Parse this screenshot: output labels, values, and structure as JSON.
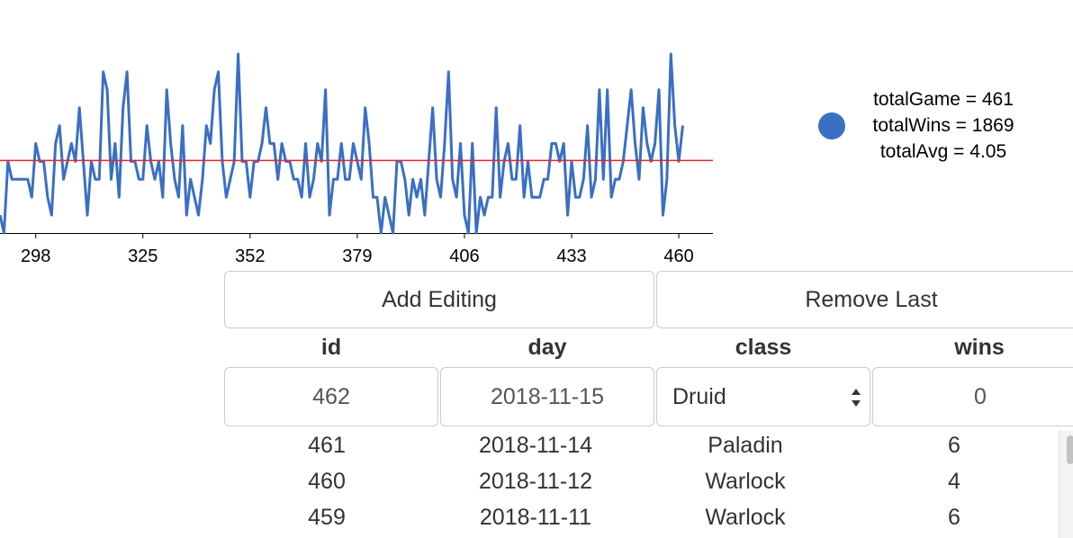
{
  "chart_data": {
    "type": "line",
    "x": [
      289,
      290,
      291,
      292,
      293,
      294,
      295,
      296,
      297,
      298,
      299,
      300,
      301,
      302,
      303,
      304,
      305,
      306,
      307,
      308,
      309,
      310,
      311,
      312,
      313,
      314,
      315,
      316,
      317,
      318,
      319,
      320,
      321,
      322,
      323,
      324,
      325,
      326,
      327,
      328,
      329,
      330,
      331,
      332,
      333,
      334,
      335,
      336,
      337,
      338,
      339,
      340,
      341,
      342,
      343,
      344,
      345,
      346,
      347,
      348,
      349,
      350,
      351,
      352,
      353,
      354,
      355,
      356,
      357,
      358,
      359,
      360,
      361,
      362,
      363,
      364,
      365,
      366,
      367,
      368,
      369,
      370,
      371,
      372,
      373,
      374,
      375,
      376,
      377,
      378,
      379,
      380,
      381,
      382,
      383,
      384,
      385,
      386,
      387,
      388,
      389,
      390,
      391,
      392,
      393,
      394,
      395,
      396,
      397,
      398,
      399,
      400,
      401,
      402,
      403,
      404,
      405,
      406,
      407,
      408,
      409,
      410,
      411,
      412,
      413,
      414,
      415,
      416,
      417,
      418,
      419,
      420,
      421,
      422,
      423,
      424,
      425,
      426,
      427,
      428,
      429,
      430,
      431,
      432,
      433,
      434,
      435,
      436,
      437,
      438,
      439,
      440,
      441,
      442,
      443,
      444,
      445,
      446,
      447,
      448,
      449,
      450,
      451,
      452,
      453,
      454,
      455,
      456,
      457,
      458,
      459,
      460,
      461
    ],
    "series": [
      {
        "color": "#3a6fc4",
        "values": [
          1,
          0,
          4,
          3,
          3,
          3,
          3,
          3,
          2,
          5,
          4,
          4,
          2,
          1,
          5,
          6,
          3,
          4,
          5,
          4,
          7,
          4,
          1,
          4,
          3,
          3,
          9,
          8,
          3,
          5,
          2,
          7,
          9,
          4,
          4,
          3,
          3,
          6,
          4,
          3,
          4,
          2,
          8,
          5,
          3,
          2,
          6,
          1,
          3,
          2,
          1,
          3,
          6,
          5,
          8,
          9,
          4,
          2,
          3,
          4,
          10,
          4,
          4,
          2,
          4,
          4,
          5,
          7,
          5,
          5,
          3,
          5,
          4,
          4,
          3,
          3,
          2,
          5,
          2,
          3,
          5,
          4,
          8,
          1,
          3,
          3,
          5,
          3,
          3,
          5,
          4,
          3,
          7,
          5,
          2,
          2,
          0,
          2,
          1,
          0,
          4,
          4,
          3,
          1,
          3,
          2,
          3,
          1,
          4,
          7,
          3,
          2,
          5,
          9,
          3,
          2,
          5,
          1,
          0,
          5,
          0,
          2,
          1,
          2,
          2,
          7,
          2,
          4,
          5,
          3,
          3,
          6,
          2,
          4,
          2,
          2,
          2,
          3,
          3,
          5,
          5,
          4,
          5,
          1,
          4,
          2,
          2,
          3,
          6,
          2,
          3,
          8,
          3,
          8,
          2,
          3,
          3,
          4,
          6,
          8,
          5,
          3,
          7,
          5,
          4,
          5,
          8,
          1,
          3,
          10,
          6,
          4,
          6
        ]
      }
    ],
    "xlim": [
      289,
      468.6
    ],
    "ylim": [
      0,
      10
    ],
    "xticks": [
      298,
      325,
      352,
      379,
      406,
      433,
      460
    ],
    "reference_line": {
      "value": 4.05,
      "color": "#e3262b"
    }
  },
  "legend": {
    "color": "#3a6fc4",
    "lines": [
      "totalGame = 461",
      "totalWins = 1869",
      "totalAvg = 4.05"
    ]
  },
  "buttons": [
    "Add Editing",
    "Remove Last"
  ],
  "table": {
    "columns": [
      "id",
      "day",
      "class",
      "wins"
    ],
    "input_row": [
      "462",
      "2018-11-15",
      "Druid",
      "0"
    ],
    "rows": [
      [
        "461",
        "2018-11-14",
        "Paladin",
        "6"
      ],
      [
        "460",
        "2018-11-12",
        "Warlock",
        "4"
      ],
      [
        "459",
        "2018-11-11",
        "Warlock",
        "6"
      ]
    ]
  }
}
